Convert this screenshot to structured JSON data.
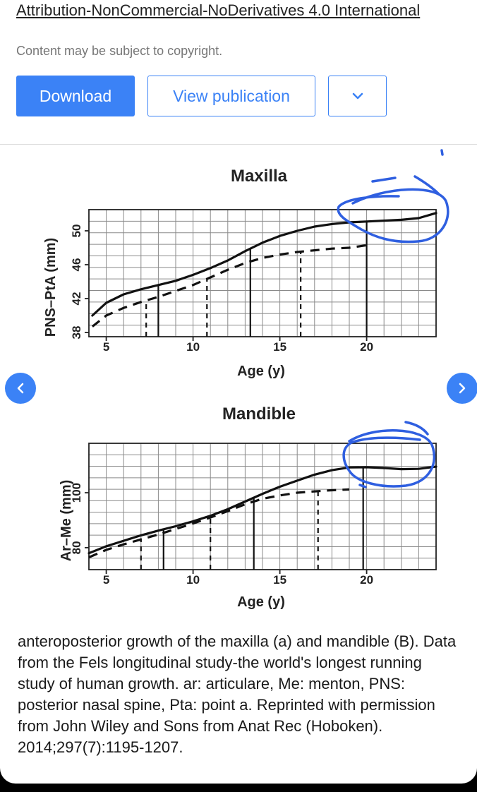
{
  "header": {
    "license_text": "Attribution-NonCommercial-NoDerivatives 4.0 International",
    "copyright_note": "Content may be subject to copyright."
  },
  "actions": {
    "download_label": "Download",
    "view_label": "View publication",
    "more_icon": "chevron-down-icon"
  },
  "nav": {
    "prev_icon": "chevron-left-icon",
    "next_icon": "chevron-right-icon"
  },
  "colors": {
    "accent": "#3b82f6",
    "annotation": "#2f5fe0",
    "text": "#1a1a1a",
    "muted": "#777777"
  },
  "caption": "anteroposterior growth of the maxilla (a) and mandible (B). Data from the Fels longitudinal study-the world's longest running study of human growth. ar: articulare, Me: menton, PNS: posterior nasal spine, Pta: point a. Reprinted with permission from John Wiley and Sons from Anat Rec (Hoboken). 2014;297(7):1195-1207.",
  "chart_data": [
    {
      "type": "line",
      "title": "Maxilla",
      "xlabel": "Age (y)",
      "ylabel": "PNS–PtA (mm)",
      "xlim": [
        4,
        24
      ],
      "ylim": [
        37.5,
        52.5
      ],
      "xticks": [
        "5",
        "10",
        "15",
        "20"
      ],
      "yticks": [
        "38",
        "42",
        "46",
        "50"
      ],
      "xtick_values": [
        5,
        10,
        15,
        20
      ],
      "ytick_values": [
        38,
        42,
        46,
        50
      ],
      "grid": true,
      "series": [
        {
          "name": "solid",
          "style": "solid",
          "x": [
            4.2,
            5,
            6,
            7,
            8,
            9,
            10,
            11,
            12,
            13,
            14,
            15,
            16,
            17,
            18,
            19,
            20,
            21,
            22,
            23,
            24
          ],
          "y": [
            40.0,
            41.5,
            42.5,
            43.1,
            43.6,
            44.1,
            44.8,
            45.6,
            46.5,
            47.6,
            48.6,
            49.4,
            50.0,
            50.5,
            50.8,
            51.0,
            51.1,
            51.2,
            51.3,
            51.5,
            52.1
          ]
        },
        {
          "name": "dashed",
          "style": "dashed",
          "x": [
            4.2,
            5,
            6,
            7,
            8,
            9,
            10,
            11,
            12,
            13,
            14,
            15,
            16,
            17,
            18,
            19,
            20
          ],
          "y": [
            38.7,
            40.0,
            40.9,
            41.6,
            42.2,
            42.9,
            43.6,
            44.5,
            45.4,
            46.2,
            46.8,
            47.2,
            47.5,
            47.7,
            47.9,
            48.0,
            48.3
          ]
        }
      ],
      "reference_lines": [
        {
          "x": 8.0,
          "style": "solid",
          "top_y": 43.6
        },
        {
          "x": 13.3,
          "style": "solid",
          "top_y": 47.9
        },
        {
          "x": 20.0,
          "style": "solid",
          "top_y": 51.1
        },
        {
          "x": 7.3,
          "style": "dashed",
          "top_y": 41.8
        },
        {
          "x": 10.8,
          "style": "dashed",
          "top_y": 44.3
        },
        {
          "x": 16.2,
          "style": "dashed",
          "top_y": 47.6
        }
      ]
    },
    {
      "type": "line",
      "title": "Mandible",
      "xlabel": "Age (y)",
      "ylabel": "Ar–Me (mm)",
      "xlim": [
        4,
        24
      ],
      "ylim": [
        72,
        118
      ],
      "xticks": [
        "5",
        "10",
        "15",
        "20"
      ],
      "yticks": [
        "80",
        "100"
      ],
      "xtick_values": [
        5,
        10,
        15,
        20
      ],
      "ytick_values": [
        80,
        100
      ],
      "grid": true,
      "series": [
        {
          "name": "solid",
          "style": "solid",
          "x": [
            4,
            5,
            6,
            7,
            8,
            9,
            10,
            11,
            12,
            13,
            14,
            15,
            16,
            17,
            18,
            19,
            20,
            21,
            22,
            23,
            24
          ],
          "y": [
            78.0,
            80.5,
            82.5,
            84.5,
            86.2,
            87.8,
            89.6,
            91.6,
            94.0,
            96.8,
            99.6,
            102.2,
            104.4,
            106.6,
            108.2,
            109.2,
            109.3,
            109.0,
            108.6,
            108.7,
            109.5
          ]
        },
        {
          "name": "dashed",
          "style": "dashed",
          "x": [
            4,
            5,
            6,
            7,
            8,
            9,
            10,
            11,
            12,
            13,
            14,
            15,
            16,
            17,
            18,
            19
          ],
          "y": [
            76.5,
            79.2,
            81.2,
            83.0,
            84.8,
            86.8,
            88.8,
            91.0,
            93.3,
            95.8,
            97.8,
            99.0,
            100.0,
            100.5,
            100.9,
            101.2
          ]
        }
      ],
      "reference_lines": [
        {
          "x": 8.3,
          "style": "solid",
          "top_y": 86.7
        },
        {
          "x": 13.5,
          "style": "solid",
          "top_y": 98.0
        },
        {
          "x": 19.8,
          "style": "solid",
          "top_y": 109.3
        },
        {
          "x": 7.0,
          "style": "dashed",
          "top_y": 83.4
        },
        {
          "x": 11.0,
          "style": "dashed",
          "top_y": 90.9
        },
        {
          "x": 17.2,
          "style": "dashed",
          "top_y": 100.6
        }
      ]
    }
  ]
}
